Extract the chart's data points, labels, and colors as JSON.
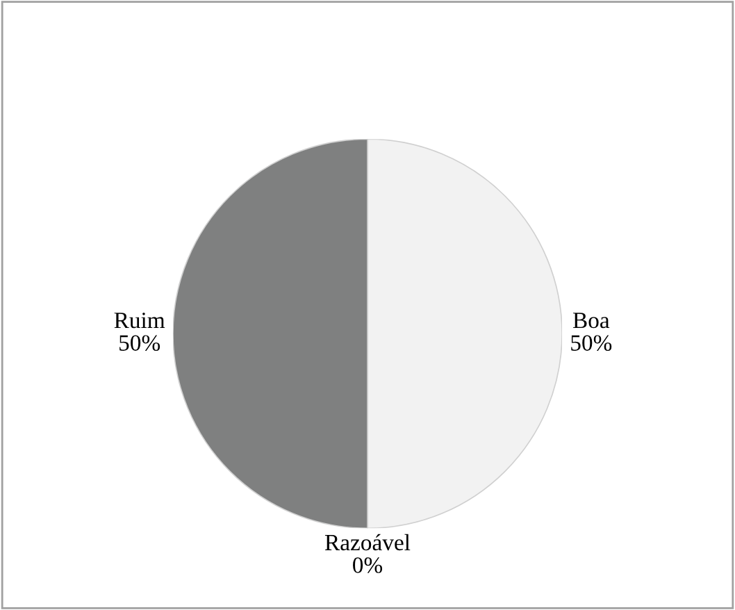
{
  "chart_data": {
    "type": "pie",
    "categories": [
      "Boa",
      "Razoável",
      "Ruim"
    ],
    "values": [
      50,
      0,
      50
    ],
    "colors": [
      "#f2f2f2",
      "#bfbfbf",
      "#7f8080"
    ],
    "value_labels": [
      "50%",
      "0%",
      "50%"
    ],
    "legend": false
  }
}
